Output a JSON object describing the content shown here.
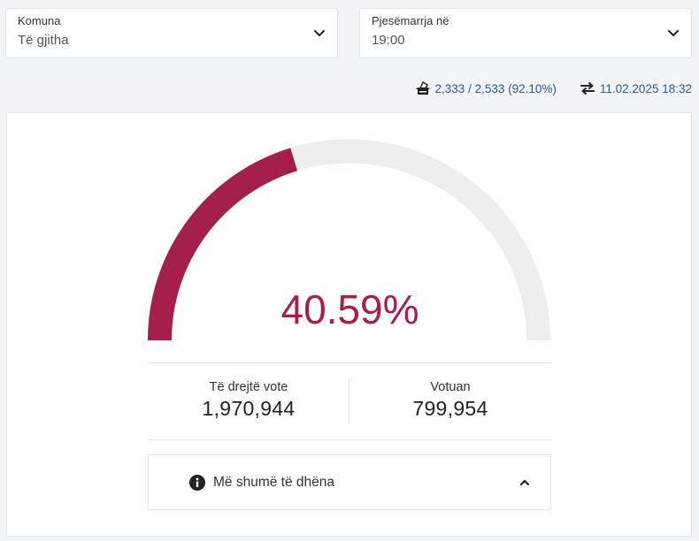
{
  "filters": {
    "municipality": {
      "label": "Komuna",
      "value": "Të gjitha"
    },
    "turnout_time": {
      "label": "Pjesëmarrja në",
      "value": "19:00"
    }
  },
  "stats": {
    "polling_stations": "2,333 / 2,533 (92.10%)",
    "updated": "11.02.2025 18:32"
  },
  "turnout": {
    "percent_text": "40.59%",
    "fraction": 0.4059,
    "eligible_label": "Të drejtë vote",
    "eligible_value": "1,970,944",
    "voted_label": "Votuan",
    "voted_value": "799,954"
  },
  "more_info": {
    "label": "Më shumë të dhëna"
  },
  "colors": {
    "accent": "#a51f4c",
    "track": "#eeeeee",
    "link": "#2a5b8a"
  }
}
